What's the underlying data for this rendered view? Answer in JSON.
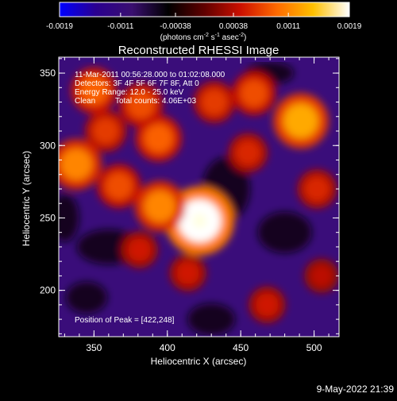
{
  "colorbar": {
    "ticks": [
      "-0.0019",
      "-0.0011",
      "-0.00038",
      "0.00038",
      "0.0011",
      "0.0019"
    ],
    "unit_base": "(photons cm",
    "unit_exp1": "-2",
    "unit_mid": " s",
    "unit_exp2": "-1",
    "unit_end": " asec",
    "unit_exp3": "-2",
    "unit_close": ")",
    "colors": [
      "#0000ff",
      "#2a0090",
      "#3a0f70",
      "#000000",
      "#600000",
      "#cc1000",
      "#ff6a00",
      "#ffc000",
      "#ffffff"
    ]
  },
  "chart_data": {
    "type": "heatmap",
    "title": "Reconstructed RHESSI Image",
    "xlabel": "Heliocentric X (arcsec)",
    "ylabel": "Heliocentric Y (arcsec)",
    "xlim": [
      326,
      517
    ],
    "ylim": [
      168,
      361
    ],
    "x_ticks": [
      350,
      400,
      450,
      500
    ],
    "y_ticks": [
      200,
      250,
      300,
      350
    ],
    "grid": false,
    "peak": {
      "x": 422,
      "y": 248
    },
    "annotations": {
      "time": "11-Mar-2011 00:56:28.000 to 01:02:08.000",
      "detectors": "Detectors: 3F 4F 5F 6F 7F 8F, Att 0",
      "energy": "Energy Range: 12.0 - 25.0 keV",
      "clean_label": "Clean",
      "counts": "Total counts: 4.06E+03",
      "peak_label": "Position of Peak = [422,248]"
    },
    "bright_sources": [
      {
        "x": 422,
        "y": 248,
        "value": 0.0019
      },
      {
        "x": 395,
        "y": 258,
        "value": 0.0011
      },
      {
        "x": 367,
        "y": 272,
        "value": 0.0008
      },
      {
        "x": 338,
        "y": 287,
        "value": 0.0011
      },
      {
        "x": 358,
        "y": 310,
        "value": 0.0007
      },
      {
        "x": 394,
        "y": 305,
        "value": 0.0009
      },
      {
        "x": 382,
        "y": 328,
        "value": 0.0008
      },
      {
        "x": 432,
        "y": 330,
        "value": 0.0007
      },
      {
        "x": 491,
        "y": 317,
        "value": 0.0013
      },
      {
        "x": 459,
        "y": 336,
        "value": 0.0008
      },
      {
        "x": 350,
        "y": 338,
        "value": 0.0009
      },
      {
        "x": 455,
        "y": 295,
        "value": 0.0006
      },
      {
        "x": 502,
        "y": 270,
        "value": 0.0006
      },
      {
        "x": 414,
        "y": 212,
        "value": 0.0005
      },
      {
        "x": 468,
        "y": 190,
        "value": 0.0005
      },
      {
        "x": 381,
        "y": 228,
        "value": 0.0005
      },
      {
        "x": 505,
        "y": 210,
        "value": 0.0004
      }
    ]
  },
  "footer": {
    "date": "9-May-2022 21:39"
  }
}
